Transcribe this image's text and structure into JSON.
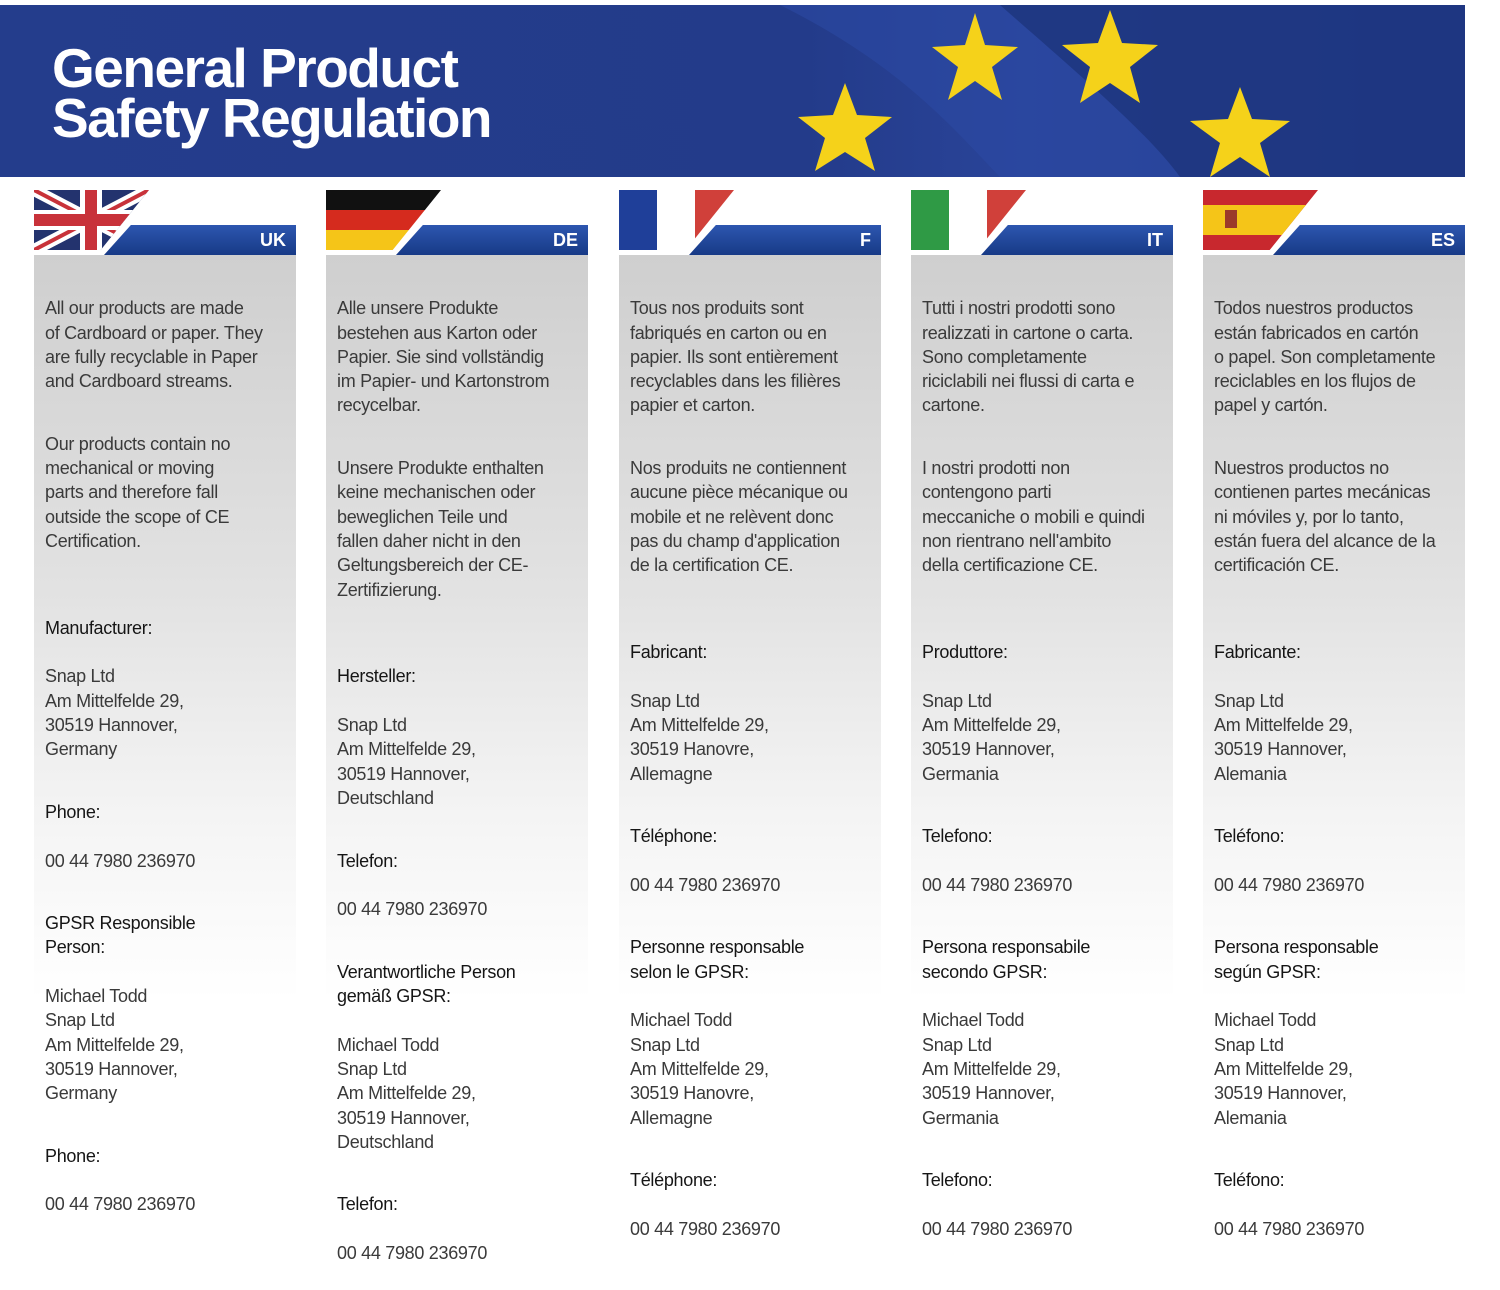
{
  "title": "General Product\nSafety Regulation",
  "colors": {
    "banner": "#233b8a",
    "star": "#f5d21a",
    "tab": "#1f3f8f"
  },
  "columns": [
    {
      "flag": "uk-flag",
      "code": "UK",
      "p1": "All our products are made\nof Cardboard or paper. They\nare fully recyclable in Paper\nand Cardboard streams.",
      "p2": "Our products contain no\nmechanical or moving\nparts and therefore fall\noutside the scope of CE\nCertification.",
      "manufacturer_label": "Manufacturer:",
      "manufacturer": "Snap Ltd\nAm Mittelfelde 29,\n30519 Hannover,\nGermany",
      "phone_label": "Phone:",
      "phone": "00 44 7980 236970",
      "gpsr_label": "GPSR Responsible\nPerson:",
      "gpsr": "Michael Todd\nSnap Ltd\nAm Mittelfelde 29,\n30519 Hannover,\nGermany",
      "phone2_label": "Phone:",
      "phone2": "00 44 7980 236970"
    },
    {
      "flag": "germany-flag",
      "code": "DE",
      "p1": "Alle unsere Produkte\nbestehen aus Karton oder\nPapier. Sie sind vollständig\nim Papier- und Kartonstrom\nrecycelbar.",
      "p2": "Unsere Produkte enthalten\nkeine mechanischen oder\nbeweglichen Teile und\nfallen daher nicht in den\nGeltungsbereich der CE-\nZertifizierung.",
      "manufacturer_label": "Hersteller:",
      "manufacturer": "Snap Ltd\nAm Mittelfelde 29,\n30519 Hannover,\nDeutschland",
      "phone_label": "Telefon:",
      "phone": "00 44 7980 236970",
      "gpsr_label": "Verantwortliche Person\ngemäß GPSR:",
      "gpsr": "Michael Todd\nSnap Ltd\nAm Mittelfelde 29,\n30519 Hannover,\nDeutschland",
      "phone2_label": "Telefon:",
      "phone2": "00 44 7980 236970"
    },
    {
      "flag": "france-flag",
      "code": "F",
      "p1": "Tous nos produits sont\nfabriqués en carton ou en\npapier. Ils sont entièrement\nrecyclables dans les filières\npapier et carton.",
      "p2": "Nos produits ne contiennent\naucune pièce mécanique ou\nmobile et ne relèvent donc\npas du champ d'application\nde la certification CE.",
      "manufacturer_label": "Fabricant:",
      "manufacturer": "Snap Ltd\nAm Mittelfelde 29,\n30519 Hanovre,\nAllemagne",
      "phone_label": "Téléphone:",
      "phone": "00 44 7980 236970",
      "gpsr_label": "Personne responsable\nselon le GPSR:",
      "gpsr": "Michael Todd\nSnap Ltd\nAm Mittelfelde 29,\n30519 Hanovre,\nAllemagne",
      "phone2_label": "Téléphone:",
      "phone2": "00 44 7980 236970"
    },
    {
      "flag": "italy-flag",
      "code": "IT",
      "p1": "Tutti i nostri prodotti sono\nrealizzati in cartone o carta.\nSono completamente\nriciclabili nei flussi di carta e\ncartone.",
      "p2": "I nostri prodotti non\ncontengono parti\nmeccaniche o mobili e quindi\nnon rientrano nell'ambito\ndella certificazione CE.",
      "manufacturer_label": "Produttore:",
      "manufacturer": "Snap Ltd\nAm Mittelfelde 29,\n30519 Hannover,\nGermania",
      "phone_label": "Telefono:",
      "phone": "00 44 7980 236970",
      "gpsr_label": "Persona responsabile\nsecondo GPSR:",
      "gpsr": "Michael Todd\nSnap Ltd\nAm Mittelfelde 29,\n30519 Hannover,\nGermania",
      "phone2_label": "Telefono:",
      "phone2": "00 44 7980 236970"
    },
    {
      "flag": "spain-flag",
      "code": "ES",
      "p1": "Todos nuestros productos\nestán fabricados en cartón\no papel. Son completamente\nreciclables en los flujos de\npapel y cartón.",
      "p2": "Nuestros productos no\ncontienen partes mecánicas\nni móviles y, por lo tanto,\nestán fuera del alcance de la\ncertificación CE.",
      "manufacturer_label": "Fabricante:",
      "manufacturer": "Snap Ltd\nAm Mittelfelde 29,\n30519 Hannover,\nAlemania",
      "phone_label": "Teléfono:",
      "phone": "00 44 7980 236970",
      "gpsr_label": "Persona responsable\nsegún GPSR:",
      "gpsr": "Michael Todd\nSnap Ltd\nAm Mittelfelde 29,\n30519 Hannover,\nAlemania",
      "phone2_label": "Teléfono:",
      "phone2": "00 44 7980 236970"
    }
  ]
}
